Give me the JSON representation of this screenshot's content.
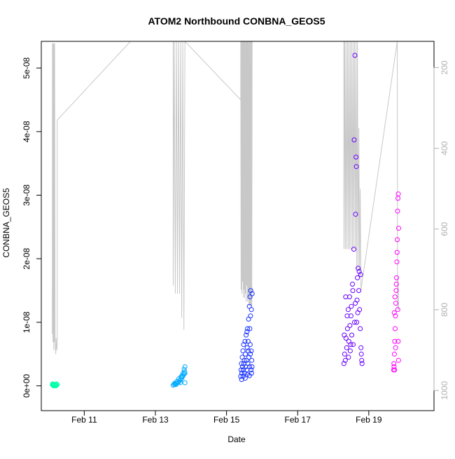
{
  "colors": {
    "background": "#ffffff",
    "axis": "#000000",
    "altitude_trace": "#c8c8c8",
    "right_axis": "#b0b0b0",
    "flight_colors": [
      "#00ffaa",
      "#00aaff",
      "#1a33ff",
      "#6a00ff",
      "#ff00ff"
    ]
  },
  "chart_data": {
    "type": "scatter",
    "title": "ATOM2 Northbound CONBNA_GEOS5",
    "xlabel": "Date",
    "ylabel": "CONBNA_GEOS5",
    "y2label": "",
    "grid": false,
    "legend": "none",
    "xlim": [
      "Feb 9 19:00",
      "Feb 20 20:00"
    ],
    "ylim": [
      -3.9e-09,
      5.42e-08
    ],
    "y2lim_inverted": [
      1050,
      135
    ],
    "x_ticks": [
      {
        "value": "Feb 11",
        "label": "Feb 11"
      },
      {
        "value": "Feb 13",
        "label": "Feb 13"
      },
      {
        "value": "Feb 15",
        "label": "Feb 15"
      },
      {
        "value": "Feb 17",
        "label": "Feb 17"
      },
      {
        "value": "Feb 19",
        "label": "Feb 19"
      }
    ],
    "y_ticks": [
      {
        "value": 0,
        "label": "0e+00"
      },
      {
        "value": 1e-08,
        "label": "1e-08"
      },
      {
        "value": 2e-08,
        "label": "2e-08"
      },
      {
        "value": 3e-08,
        "label": "3e-08"
      },
      {
        "value": 4e-08,
        "label": "4e-08"
      },
      {
        "value": 5e-08,
        "label": "5e-08"
      }
    ],
    "y2_ticks": [
      {
        "value": 200,
        "label": "200"
      },
      {
        "value": 400,
        "label": "400"
      },
      {
        "value": 600,
        "label": "600"
      },
      {
        "value": 800,
        "label": "800"
      },
      {
        "value": 1000,
        "label": "1000"
      }
    ],
    "series": [
      {
        "flight": 1,
        "points": [
          [
            "Feb 10 02:24",
            2e-10
          ],
          [
            "Feb 10 02:53",
            1e-10
          ],
          [
            "Feb 10 03:22",
            0
          ],
          [
            "Feb 10 03:50",
            2e-10
          ],
          [
            "Feb 10 04:19",
            1e-10
          ],
          [
            "Feb 10 04:48",
            0
          ],
          [
            "Feb 10 05:17",
            1e-10
          ],
          [
            "Feb 10 05:46",
            2e-10
          ],
          [
            "Feb 10 02:38",
            3e-10
          ],
          [
            "Feb 10 03:07",
            2e-10
          ],
          [
            "Feb 10 04:05",
            1e-10
          ],
          [
            "Feb 10 05:02",
            3e-10
          ]
        ]
      },
      {
        "flight": 2,
        "points": [
          [
            "Feb 13 12:00",
            1e-10
          ],
          [
            "Feb 13 12:43",
            2e-10
          ],
          [
            "Feb 13 13:26",
            3e-10
          ],
          [
            "Feb 13 14:10",
            4e-10
          ],
          [
            "Feb 13 14:53",
            5e-10
          ],
          [
            "Feb 13 15:36",
            6e-10
          ],
          [
            "Feb 13 16:19",
            8e-10
          ],
          [
            "Feb 13 17:02",
            1e-09
          ],
          [
            "Feb 13 17:46",
            1.2e-09
          ],
          [
            "Feb 13 18:29",
            1.5e-09
          ],
          [
            "Feb 13 19:12",
            1.8e-09
          ],
          [
            "Feb 13 19:41",
            2.2e-09
          ],
          [
            "Feb 13 12:58",
            4e-10
          ],
          [
            "Feb 13 14:24",
            7e-10
          ],
          [
            "Feb 13 15:50",
            1.1e-09
          ],
          [
            "Feb 13 17:17",
            1.4e-09
          ],
          [
            "Feb 13 18:43",
            2e-09
          ],
          [
            "Feb 13 19:26",
            2.6e-09
          ],
          [
            "Feb 13 19:55",
            3e-09
          ],
          [
            "Feb 13 19:55",
            2e-09
          ],
          [
            "Feb 13 13:55",
            2e-10
          ],
          [
            "Feb 13 16:48",
            5e-10
          ],
          [
            "Feb 13 18:00",
            1.6e-09
          ],
          [
            "Feb 13 19:55",
            5e-10
          ]
        ]
      },
      {
        "flight": 3,
        "points": [
          [
            "Feb 15 09:36",
            1.5e-09
          ],
          [
            "Feb 15 09:50",
            2.5e-09
          ],
          [
            "Feb 15 10:05",
            3.5e-09
          ],
          [
            "Feb 15 10:19",
            2e-09
          ],
          [
            "Feb 15 10:34",
            4.5e-09
          ],
          [
            "Feb 15 10:48",
            3e-09
          ],
          [
            "Feb 15 11:02",
            5.5e-09
          ],
          [
            "Feb 15 11:17",
            2.5e-09
          ],
          [
            "Feb 15 11:31",
            6.5e-09
          ],
          [
            "Feb 15 11:46",
            3.5e-09
          ],
          [
            "Feb 15 12:00",
            4e-09
          ],
          [
            "Feb 15 12:14",
            2e-09
          ],
          [
            "Feb 15 12:29",
            7e-09
          ],
          [
            "Feb 15 12:43",
            5e-09
          ],
          [
            "Feb 15 12:58",
            3e-09
          ],
          [
            "Feb 15 13:12",
            8e-09
          ],
          [
            "Feb 15 13:26",
            4e-09
          ],
          [
            "Feb 15 13:41",
            2.5e-09
          ],
          [
            "Feb 15 13:55",
            6e-09
          ],
          [
            "Feb 15 14:10",
            9e-09
          ],
          [
            "Feb 15 14:24",
            3.5e-09
          ],
          [
            "Feb 15 14:38",
            5.5e-09
          ],
          [
            "Feb 15 14:53",
            1.05e-08
          ],
          [
            "Feb 15 15:07",
            4.5e-09
          ],
          [
            "Feb 15 15:22",
            1.25e-08
          ],
          [
            "Feb 15 15:36",
            3e-09
          ],
          [
            "Feb 15 15:50",
            1.4e-08
          ],
          [
            "Feb 15 16:05",
            5e-09
          ],
          [
            "Feb 15 16:19",
            1.5e-08
          ],
          [
            "Feb 15 16:34",
            2.5e-09
          ],
          [
            "Feb 15 16:48",
            1.2e-08
          ],
          [
            "Feb 15 17:02",
            4e-09
          ],
          [
            "Feb 15 17:17",
            1.45e-08
          ],
          [
            "Feb 15 10:12",
            1e-09
          ],
          [
            "Feb 15 11:10",
            1.5e-09
          ],
          [
            "Feb 15 12:36",
            1.2e-09
          ],
          [
            "Feb 15 14:02",
            1.8e-09
          ],
          [
            "Feb 15 15:29",
            1.6e-09
          ],
          [
            "Feb 15 16:55",
            2e-09
          ],
          [
            "Feb 15 17:10",
            3e-09
          ],
          [
            "Feb 15 13:48",
            8.5e-09
          ],
          [
            "Feb 15 14:31",
            7e-09
          ],
          [
            "Feb 15 15:58",
            6.5e-09
          ],
          [
            "Feb 15 16:41",
            5.5e-09
          ],
          [
            "Feb 15 16:12",
            1.1e-08
          ],
          [
            "Feb 15 15:43",
            9e-09
          ]
        ]
      },
      {
        "flight": 4,
        "points": [
          [
            "Feb 18 07:12",
            3.5e-09
          ],
          [
            "Feb 18 07:41",
            5e-09
          ],
          [
            "Feb 18 08:10",
            4e-09
          ],
          [
            "Feb 18 08:38",
            7.5e-09
          ],
          [
            "Feb 18 09:07",
            6e-09
          ],
          [
            "Feb 18 09:36",
            9e-09
          ],
          [
            "Feb 18 10:05",
            1.2e-08
          ],
          [
            "Feb 18 10:34",
            7e-09
          ],
          [
            "Feb 18 11:02",
            1.4e-08
          ],
          [
            "Feb 18 11:31",
            5.5e-09
          ],
          [
            "Feb 18 12:00",
            1.1e-08
          ],
          [
            "Feb 18 12:29",
            8e-09
          ],
          [
            "Feb 18 12:58",
            1.6e-08
          ],
          [
            "Feb 18 13:26",
            6.5e-09
          ],
          [
            "Feb 18 13:55",
            2.15e-08
          ],
          [
            "Feb 18 14:24",
            1e-08
          ],
          [
            "Feb 18 14:53",
            1.3e-08
          ],
          [
            "Feb 18 14:38",
            5.2e-08
          ],
          [
            "Feb 18 14:10",
            3.87e-08
          ],
          [
            "Feb 18 15:22",
            3.6e-08
          ],
          [
            "Feb 18 15:36",
            3.45e-08
          ],
          [
            "Feb 18 15:07",
            2.7e-08
          ],
          [
            "Feb 18 16:19",
            1.7e-08
          ],
          [
            "Feb 18 16:48",
            1.85e-08
          ],
          [
            "Feb 18 17:17",
            1.5e-08
          ],
          [
            "Feb 18 17:46",
            1.2e-08
          ],
          [
            "Feb 18 18:14",
            9e-09
          ],
          [
            "Feb 18 18:43",
            6e-09
          ],
          [
            "Feb 18 19:12",
            4e-09
          ],
          [
            "Feb 18 07:26",
            8e-09
          ],
          [
            "Feb 18 08:24",
            1.4e-08
          ],
          [
            "Feb 18 09:22",
            1.1e-08
          ],
          [
            "Feb 18 10:19",
            4.5e-09
          ],
          [
            "Feb 18 11:17",
            9.5e-09
          ],
          [
            "Feb 18 12:14",
            1.25e-08
          ],
          [
            "Feb 18 13:12",
            1.5e-08
          ],
          [
            "Feb 18 16:05",
            1.35e-08
          ],
          [
            "Feb 18 17:31",
            1.8e-08
          ],
          [
            "Feb 18 18:58",
            5e-09
          ],
          [
            "Feb 18 19:26",
            3.5e-09
          ],
          [
            "Feb 18 15:50",
            1e-08
          ],
          [
            "Feb 18 16:34",
            1.15e-08
          ],
          [
            "Feb 18 18:29",
            1.75e-08
          ],
          [
            "Feb 18 11:46",
            6.5e-09
          ]
        ]
      },
      {
        "flight": 5,
        "points": [
          [
            "Feb 19 16:48",
            2.5e-09
          ],
          [
            "Feb 19 17:02",
            3e-09
          ],
          [
            "Feb 19 17:17",
            5e-09
          ],
          [
            "Feb 19 17:31",
            7e-09
          ],
          [
            "Feb 19 17:46",
            9e-09
          ],
          [
            "Feb 19 18:00",
            1.1e-08
          ],
          [
            "Feb 19 18:14",
            1.3e-08
          ],
          [
            "Feb 19 18:29",
            1.5e-08
          ],
          [
            "Feb 19 18:43",
            1.7e-08
          ],
          [
            "Feb 19 18:58",
            1.95e-08
          ],
          [
            "Feb 19 19:12",
            2.3e-08
          ],
          [
            "Feb 19 19:26",
            2.75e-08
          ],
          [
            "Feb 19 19:41",
            2.95e-08
          ],
          [
            "Feb 19 19:55",
            3.02e-08
          ],
          [
            "Feb 19 20:10",
            2.48e-08
          ],
          [
            "Feb 19 16:55",
            3.5e-09
          ],
          [
            "Feb 19 17:10",
            1.15e-08
          ],
          [
            "Feb 19 17:38",
            1.4e-08
          ],
          [
            "Feb 19 18:07",
            6e-09
          ],
          [
            "Feb 19 18:36",
            1.6e-08
          ],
          [
            "Feb 19 19:05",
            2.1e-08
          ],
          [
            "Feb 19 19:34",
            1.2e-08
          ],
          [
            "Feb 19 19:48",
            7e-09
          ],
          [
            "Feb 19 20:02",
            4e-09
          ],
          [
            "Feb 19 17:24",
            2.5e-09
          ]
        ]
      }
    ],
    "altitude_trace": [
      [
        "Feb 10 02:24",
        860
      ],
      [
        "Feb 10 02:31",
        140
      ],
      [
        "Feb 10 02:38",
        850
      ],
      [
        "Feb 10 02:46",
        140
      ],
      [
        "Feb 10 02:53",
        880
      ],
      [
        "Feb 10 03:00",
        140
      ],
      [
        "Feb 10 03:07",
        870
      ],
      [
        "Feb 10 03:14",
        140
      ],
      [
        "Feb 10 03:22",
        900
      ],
      [
        "Feb 10 03:29",
        140
      ],
      [
        "Feb 10 03:50",
        880
      ],
      [
        "Feb 10 04:00",
        140
      ],
      [
        "Feb 10 04:19",
        890
      ],
      [
        "Feb 10 04:48",
        910
      ],
      [
        "Feb 10 05:02",
        870
      ],
      [
        "Feb 10 05:17",
        890
      ],
      [
        "Feb 10 05:31",
        900
      ],
      [
        "Feb 10 05:46",
        880
      ],
      [
        "Feb 10 05:46",
        330
      ],
      [
        "Feb 12 07:12",
        135
      ],
      [
        "Feb 12 19:12",
        135
      ],
      [
        "Feb 13 00:00",
        135
      ],
      [
        "Feb 13 12:00",
        135
      ],
      [
        "Feb 13 12:00",
        740
      ],
      [
        "Feb 13 12:43",
        135
      ],
      [
        "Feb 13 13:26",
        760
      ],
      [
        "Feb 13 14:10",
        135
      ],
      [
        "Feb 13 14:53",
        760
      ],
      [
        "Feb 13 15:36",
        135
      ],
      [
        "Feb 13 16:19",
        760
      ],
      [
        "Feb 13 17:02",
        135
      ],
      [
        "Feb 13 17:46",
        820
      ],
      [
        "Feb 13 18:29",
        135
      ],
      [
        "Feb 13 19:12",
        850
      ],
      [
        "Feb 13 19:55",
        135
      ],
      [
        "Feb 15 09:36",
        280
      ],
      [
        "Feb 15 09:36",
        135
      ],
      [
        "Feb 15 09:50",
        750
      ],
      [
        "Feb 15 10:05",
        135
      ],
      [
        "Feb 15 10:19",
        760
      ],
      [
        "Feb 15 10:34",
        135
      ],
      [
        "Feb 15 10:48",
        730
      ],
      [
        "Feb 15 11:02",
        135
      ],
      [
        "Feb 15 11:17",
        770
      ],
      [
        "Feb 15 11:31",
        135
      ],
      [
        "Feb 15 11:46",
        750
      ],
      [
        "Feb 15 12:00",
        135
      ],
      [
        "Feb 15 12:14",
        770
      ],
      [
        "Feb 15 12:29",
        135
      ],
      [
        "Feb 15 12:43",
        760
      ],
      [
        "Feb 15 12:58",
        135
      ],
      [
        "Feb 15 13:12",
        780
      ],
      [
        "Feb 15 13:26",
        135
      ],
      [
        "Feb 15 13:41",
        740
      ],
      [
        "Feb 15 13:55",
        135
      ],
      [
        "Feb 15 14:10",
        780
      ],
      [
        "Feb 15 14:24",
        135
      ],
      [
        "Feb 15 14:38",
        770
      ],
      [
        "Feb 15 14:53",
        135
      ],
      [
        "Feb 15 15:07",
        790
      ],
      [
        "Feb 15 15:22",
        135
      ],
      [
        "Feb 15 15:36",
        790
      ],
      [
        "Feb 15 15:50",
        135
      ],
      [
        "Feb 15 16:05",
        790
      ],
      [
        "Feb 15 16:19",
        135
      ],
      [
        "Feb 15 16:34",
        790
      ],
      [
        "Feb 15 16:48",
        135
      ],
      [
        "Feb 15 17:02",
        790
      ],
      [
        "Feb 15 17:17",
        135
      ],
      [
        "Feb 18 07:12",
        135
      ],
      [
        "Feb 18 07:12",
        650
      ],
      [
        "Feb 18 07:41",
        135
      ],
      [
        "Feb 18 08:10",
        650
      ],
      [
        "Feb 18 08:38",
        135
      ],
      [
        "Feb 18 09:07",
        650
      ],
      [
        "Feb 18 09:36",
        135
      ],
      [
        "Feb 18 10:05",
        650
      ],
      [
        "Feb 18 10:34",
        135
      ],
      [
        "Feb 18 11:02",
        650
      ],
      [
        "Feb 18 11:31",
        135
      ],
      [
        "Feb 18 12:00",
        650
      ],
      [
        "Feb 18 12:29",
        135
      ],
      [
        "Feb 18 12:58",
        650
      ],
      [
        "Feb 18 13:26",
        135
      ],
      [
        "Feb 18 13:55",
        650
      ],
      [
        "Feb 18 14:24",
        135
      ],
      [
        "Feb 18 14:53",
        650
      ],
      [
        "Feb 18 15:22",
        135
      ],
      [
        "Feb 18 15:50",
        700
      ],
      [
        "Feb 18 16:19",
        135
      ],
      [
        "Feb 18 16:48",
        700
      ],
      [
        "Feb 18 17:17",
        350
      ],
      [
        "Feb 18 17:46",
        720
      ],
      [
        "Feb 18 18:14",
        500
      ],
      [
        "Feb 18 18:43",
        750
      ],
      [
        "Feb 19 19:12",
        135
      ],
      [
        "Feb 19 19:26",
        800
      ],
      [
        "Feb 19 19:41",
        720
      ],
      [
        "Feb 19 19:55",
        750
      ],
      [
        "Feb 19 20:10",
        800
      ]
    ]
  }
}
